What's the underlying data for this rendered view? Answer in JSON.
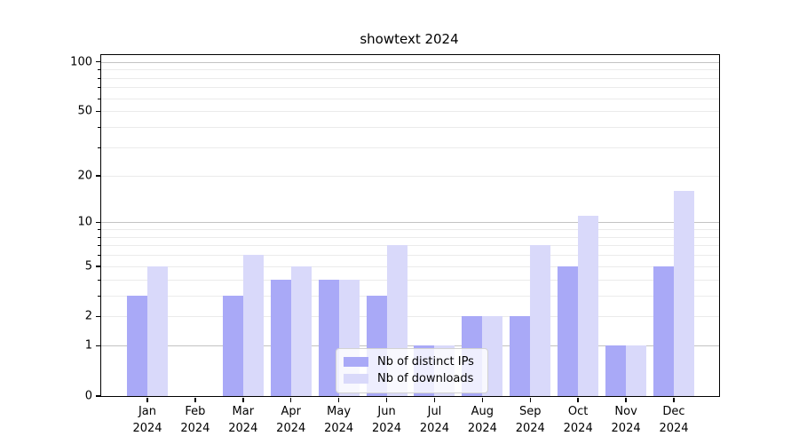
{
  "title": "showtext 2024",
  "colors": {
    "distinct_ips_bar": "#a9a9f7",
    "downloads_bar": "#d9d9fa",
    "grid_major": "#c3c3c3",
    "grid_minor": "#ebebeb",
    "axis": "#000000",
    "legend_border": "#d2d2d2"
  },
  "legend": {
    "items": [
      {
        "label": "Nb of distinct IPs"
      },
      {
        "label": "Nb of downloads"
      }
    ]
  },
  "chart_data": {
    "type": "bar",
    "title": "showtext 2024",
    "xlabel": "",
    "ylabel": "",
    "year_label": "2024",
    "months": [
      "Jan",
      "Feb",
      "Mar",
      "Apr",
      "May",
      "Jun",
      "Jul",
      "Aug",
      "Sep",
      "Oct",
      "Nov",
      "Dec"
    ],
    "categories": [
      "Jan 2024",
      "Feb 2024",
      "Mar 2024",
      "Apr 2024",
      "May 2024",
      "Jun 2024",
      "Jul 2024",
      "Aug 2024",
      "Sep 2024",
      "Oct 2024",
      "Nov 2024",
      "Dec 2024"
    ],
    "series": [
      {
        "name": "Nb of distinct IPs",
        "color": "#a9a9f7",
        "values": [
          3,
          0,
          3,
          4,
          4,
          3,
          1,
          2,
          2,
          5,
          1,
          5
        ]
      },
      {
        "name": "Nb of downloads",
        "color": "#d9d9fa",
        "values": [
          5,
          0,
          6,
          5,
          4,
          7,
          1,
          2,
          7,
          11,
          1,
          16
        ]
      }
    ],
    "y_scale": "log1p",
    "ylim": [
      0,
      110
    ],
    "y_ticks_labeled": [
      0,
      1,
      2,
      5,
      10,
      20,
      50,
      100
    ],
    "y_minor_ticks": [
      3,
      4,
      6,
      7,
      8,
      9,
      30,
      40,
      60,
      70,
      80,
      90
    ],
    "y_major_gridlines": [
      1,
      10,
      100
    ],
    "y_minor_gridlines": [
      2,
      3,
      4,
      5,
      6,
      7,
      8,
      9,
      20,
      30,
      40,
      50,
      60,
      70,
      80,
      90
    ],
    "grid": true,
    "legend_position": "lower center"
  }
}
